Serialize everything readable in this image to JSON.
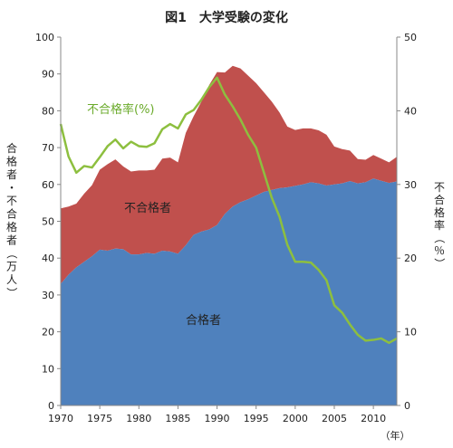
{
  "chart_data": {
    "type": "area",
    "title": "図1　大学受験の変化",
    "xlabel": "（年）",
    "ylabel_left": "合格者・不合格者（万人）",
    "ylabel_right": "不合格率（％）",
    "xlim": [
      1970,
      2013
    ],
    "ylim_left": [
      0,
      100
    ],
    "ylim_right": [
      0,
      50
    ],
    "x_ticks": [
      1970,
      1975,
      1980,
      1985,
      1990,
      1995,
      2000,
      2005,
      2010
    ],
    "y_left_ticks": [
      0,
      10,
      20,
      30,
      40,
      50,
      60,
      70,
      80,
      90,
      100
    ],
    "y_right_ticks": [
      0,
      10,
      20,
      30,
      40,
      50
    ],
    "grid": false,
    "legend": "inline-labels",
    "x": [
      1970,
      1971,
      1972,
      1973,
      1974,
      1975,
      1976,
      1977,
      1978,
      1979,
      1980,
      1981,
      1982,
      1983,
      1984,
      1985,
      1986,
      1987,
      1988,
      1989,
      1990,
      1991,
      1992,
      1993,
      1994,
      1995,
      1996,
      1997,
      1998,
      1999,
      2000,
      2001,
      2002,
      2003,
      2004,
      2005,
      2006,
      2007,
      2008,
      2009,
      2010,
      2011,
      2012,
      2013
    ],
    "series": [
      {
        "name": "合格者",
        "axis": "left",
        "color": "#4f81bd",
        "values": [
          33,
          35.5,
          37.5,
          39,
          40.5,
          42.3,
          42,
          42.6,
          42.4,
          41,
          41,
          41.4,
          41.2,
          42,
          41.8,
          41.2,
          43.5,
          46.3,
          47.2,
          47.8,
          49,
          52,
          54,
          55.2,
          56,
          57,
          58,
          58.5,
          59,
          59.2,
          59.6,
          60,
          60.6,
          60.3,
          59.7,
          60,
          60.3,
          60.9,
          60.3,
          60.6,
          61.6,
          61,
          60.4,
          60.8
        ]
      },
      {
        "name": "不合格者",
        "axis": "left",
        "color": "#c0504d",
        "values": [
          20.5,
          18.5,
          17.3,
          18.5,
          19.3,
          21.7,
          23.5,
          24.2,
          22.5,
          22.5,
          22.8,
          22.4,
          22.8,
          25,
          25.5,
          24.8,
          30.5,
          32.2,
          35.3,
          39.2,
          41.5,
          38.4,
          38.2,
          36.3,
          33.5,
          30.5,
          27,
          24,
          20.5,
          16.5,
          15.2,
          15.2,
          14.6,
          14.4,
          13.8,
          10.3,
          9.3,
          8.3,
          6.6,
          6.1,
          6.4,
          6,
          5.6,
          6.7
        ]
      },
      {
        "name": "不合格率（％）",
        "axis": "right",
        "color": "#8dbf3f",
        "values": [
          38.2,
          33.8,
          31.6,
          32.5,
          32.3,
          33.7,
          35.2,
          36.1,
          34.9,
          35.8,
          35.2,
          35.1,
          35.6,
          37.5,
          38.2,
          37.6,
          39.5,
          40.1,
          41.5,
          43.2,
          44.5,
          42.2,
          40.6,
          38.8,
          36.7,
          35,
          31.6,
          28.2,
          25.6,
          21.8,
          19.5,
          19.5,
          19.4,
          18.4,
          17,
          13.6,
          12.6,
          11,
          9.6,
          8.8,
          8.9,
          9.1,
          8.5,
          9.1
        ]
      }
    ],
    "annotations": {
      "rate": "不合格率(%)",
      "rejected": "不合格者",
      "passed": "合格者"
    }
  }
}
